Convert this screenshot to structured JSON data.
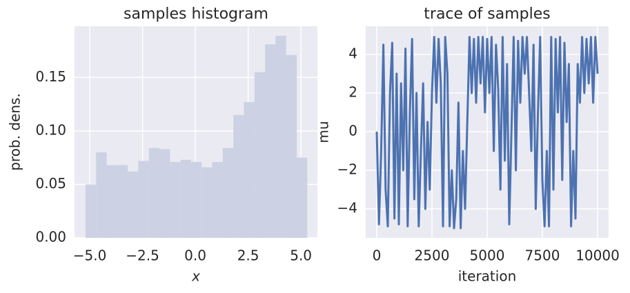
{
  "chart_data": [
    {
      "type": "histogram",
      "title": "samples histogram",
      "x_label": "x",
      "y_label": "prob. dens.",
      "bins": [
        -5.2,
        -4.7,
        -4.2,
        -3.7,
        -3.2,
        -2.7,
        -2.2,
        -1.7,
        -1.2,
        -0.7,
        -0.2,
        0.3,
        0.8,
        1.3,
        1.8,
        2.3,
        2.8,
        3.3,
        3.8,
        4.3,
        4.8,
        5.3
      ],
      "values": [
        0.05,
        0.08,
        0.068,
        0.068,
        0.062,
        0.072,
        0.084,
        0.083,
        0.071,
        0.073,
        0.071,
        0.066,
        0.071,
        0.084,
        0.115,
        0.127,
        0.155,
        0.181,
        0.189,
        0.171,
        0.075
      ],
      "color": "#ccd1e4",
      "xlim": [
        -5.72,
        5.78
      ],
      "ylim": [
        0,
        0.198
      ],
      "xticks": [
        {
          "value": -5,
          "label": "−5.0"
        },
        {
          "value": -2.5,
          "label": "−2.5"
        },
        {
          "value": 0,
          "label": "0.0"
        },
        {
          "value": 2.5,
          "label": "2.5"
        },
        {
          "value": 5,
          "label": "5.0"
        }
      ],
      "yticks": [
        {
          "value": 0,
          "label": "0.00"
        },
        {
          "value": 0.05,
          "label": "0.05"
        },
        {
          "value": 0.1,
          "label": "0.10"
        },
        {
          "value": 0.15,
          "label": "0.15"
        }
      ],
      "grid": true
    },
    {
      "type": "line",
      "title": "trace of samples",
      "x_label": "iteration",
      "y_label": "mu",
      "x": [
        0,
        100,
        200,
        300,
        400,
        500,
        600,
        700,
        800,
        900,
        1000,
        1100,
        1200,
        1300,
        1400,
        1500,
        1600,
        1700,
        1800,
        1900,
        2000,
        2100,
        2200,
        2300,
        2400,
        2500,
        2600,
        2700,
        2800,
        2900,
        3000,
        3100,
        3200,
        3300,
        3400,
        3500,
        3600,
        3700,
        3800,
        3900,
        4000,
        4100,
        4200,
        4300,
        4400,
        4500,
        4600,
        4700,
        4800,
        4900,
        5000,
        5100,
        5200,
        5300,
        5400,
        5500,
        5600,
        5700,
        5800,
        5900,
        6000,
        6100,
        6200,
        6300,
        6400,
        6500,
        6600,
        6700,
        6800,
        6900,
        7000,
        7100,
        7200,
        7300,
        7400,
        7500,
        7600,
        7700,
        7800,
        7900,
        8000,
        8100,
        8200,
        8300,
        8400,
        8500,
        8600,
        8700,
        8800,
        8900,
        9000,
        9100,
        9200,
        9300,
        9400,
        9500,
        9600,
        9700,
        9800,
        9900,
        10000
      ],
      "values": [
        0,
        -4.8,
        -1,
        4.5,
        -3,
        -4.9,
        2,
        4.6,
        -4.5,
        3,
        -4.8,
        2.5,
        -2,
        4.3,
        -4.9,
        1,
        4.8,
        -3.5,
        2,
        -4.9,
        -1,
        2.5,
        -4,
        0.5,
        -3,
        2,
        4.9,
        1.5,
        4.8,
        2.5,
        -4.9,
        4.9,
        3,
        -4.9,
        -2,
        -5,
        -3.5,
        1.5,
        -5,
        -1,
        -4,
        0.5,
        4.9,
        2,
        4.8,
        1.5,
        4.9,
        2.5,
        4.9,
        1,
        4.8,
        2,
        4.9,
        -1,
        4.5,
        2.2,
        -3,
        4.9,
        -1.5,
        3.5,
        -4.8,
        0,
        4.9,
        -2,
        4.7,
        1.5,
        4.9,
        3,
        4.9,
        2,
        -1,
        4.5,
        -4,
        1,
        4.9,
        -2.5,
        -4.9,
        -1,
        -4.9,
        4.9,
        -3,
        4.8,
        1,
        4.9,
        -2.5,
        4.6,
        0.5,
        3.5,
        -4.9,
        -1,
        -4.5,
        3.5,
        1.5,
        4.9,
        2,
        4.8,
        2.5,
        4.9,
        1.5,
        4.9,
        3
      ],
      "color": "#4c72b0",
      "xlim": [
        -500,
        10500
      ],
      "ylim": [
        -5.5,
        5.46
      ],
      "xticks": [
        0,
        2500,
        5000,
        7500,
        10000
      ],
      "yticks": [
        {
          "value": -4,
          "label": "−4"
        },
        {
          "value": -2,
          "label": "−2"
        },
        0,
        2,
        4
      ],
      "grid": true
    }
  ]
}
